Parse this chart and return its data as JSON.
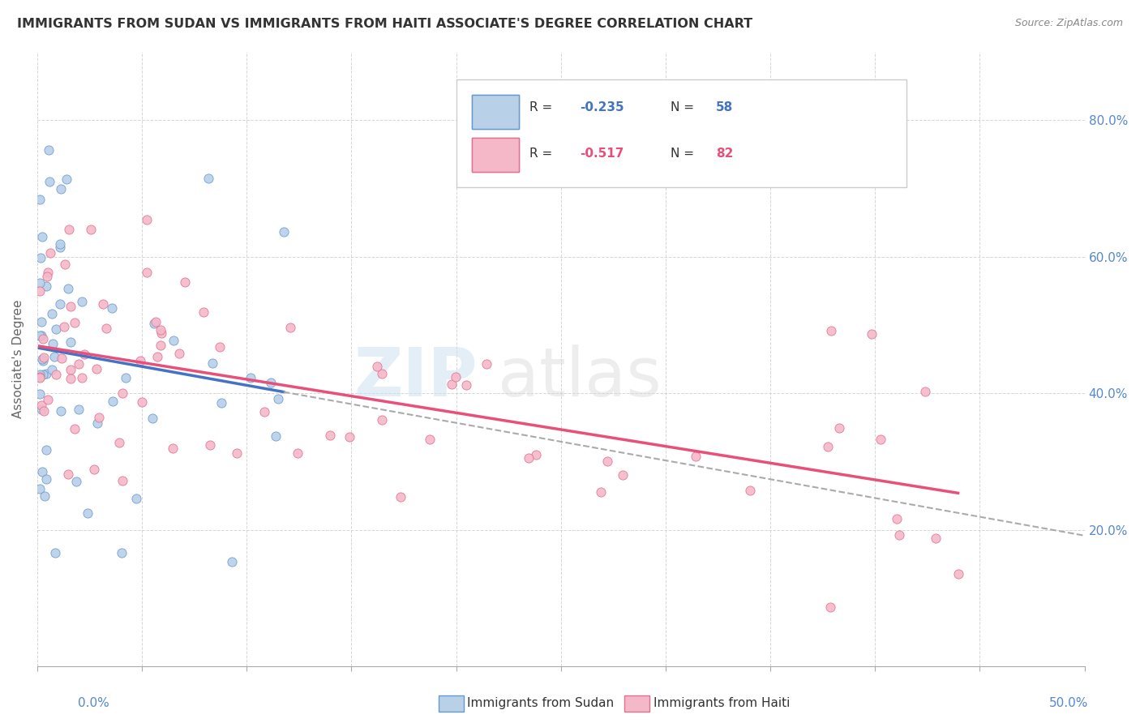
{
  "title": "IMMIGRANTS FROM SUDAN VS IMMIGRANTS FROM HAITI ASSOCIATE'S DEGREE CORRELATION CHART",
  "source": "Source: ZipAtlas.com",
  "ylabel": "Associate's Degree",
  "xlim": [
    0.0,
    0.5
  ],
  "ylim": [
    0.0,
    0.9
  ],
  "x_ticks": [
    0.0,
    0.05,
    0.1,
    0.15,
    0.2,
    0.25,
    0.3,
    0.35,
    0.4,
    0.45,
    0.5
  ],
  "y_ticks": [
    0.2,
    0.4,
    0.6,
    0.8
  ],
  "y_tick_labels": [
    "20.0%",
    "40.0%",
    "60.0%",
    "80.0%"
  ],
  "legend_label1": "Immigrants from Sudan",
  "legend_label2": "Immigrants from Haiti",
  "R_sudan": -0.235,
  "N_sudan": 58,
  "R_haiti": -0.517,
  "N_haiti": 82,
  "color_sudan_fill": "#b8d0e8",
  "color_sudan_edge": "#6699cc",
  "color_sudan_line": "#4472c4",
  "color_haiti_fill": "#f5b8c8",
  "color_haiti_edge": "#e07090",
  "color_haiti_line": "#e8507a",
  "color_dashed": "#aaaaaa",
  "grid_color": "#cccccc",
  "title_color": "#333333",
  "source_color": "#888888",
  "ylabel_color": "#666666",
  "right_ytick_color": "#5588cc",
  "bottom_xlabel_color": "#5588cc"
}
